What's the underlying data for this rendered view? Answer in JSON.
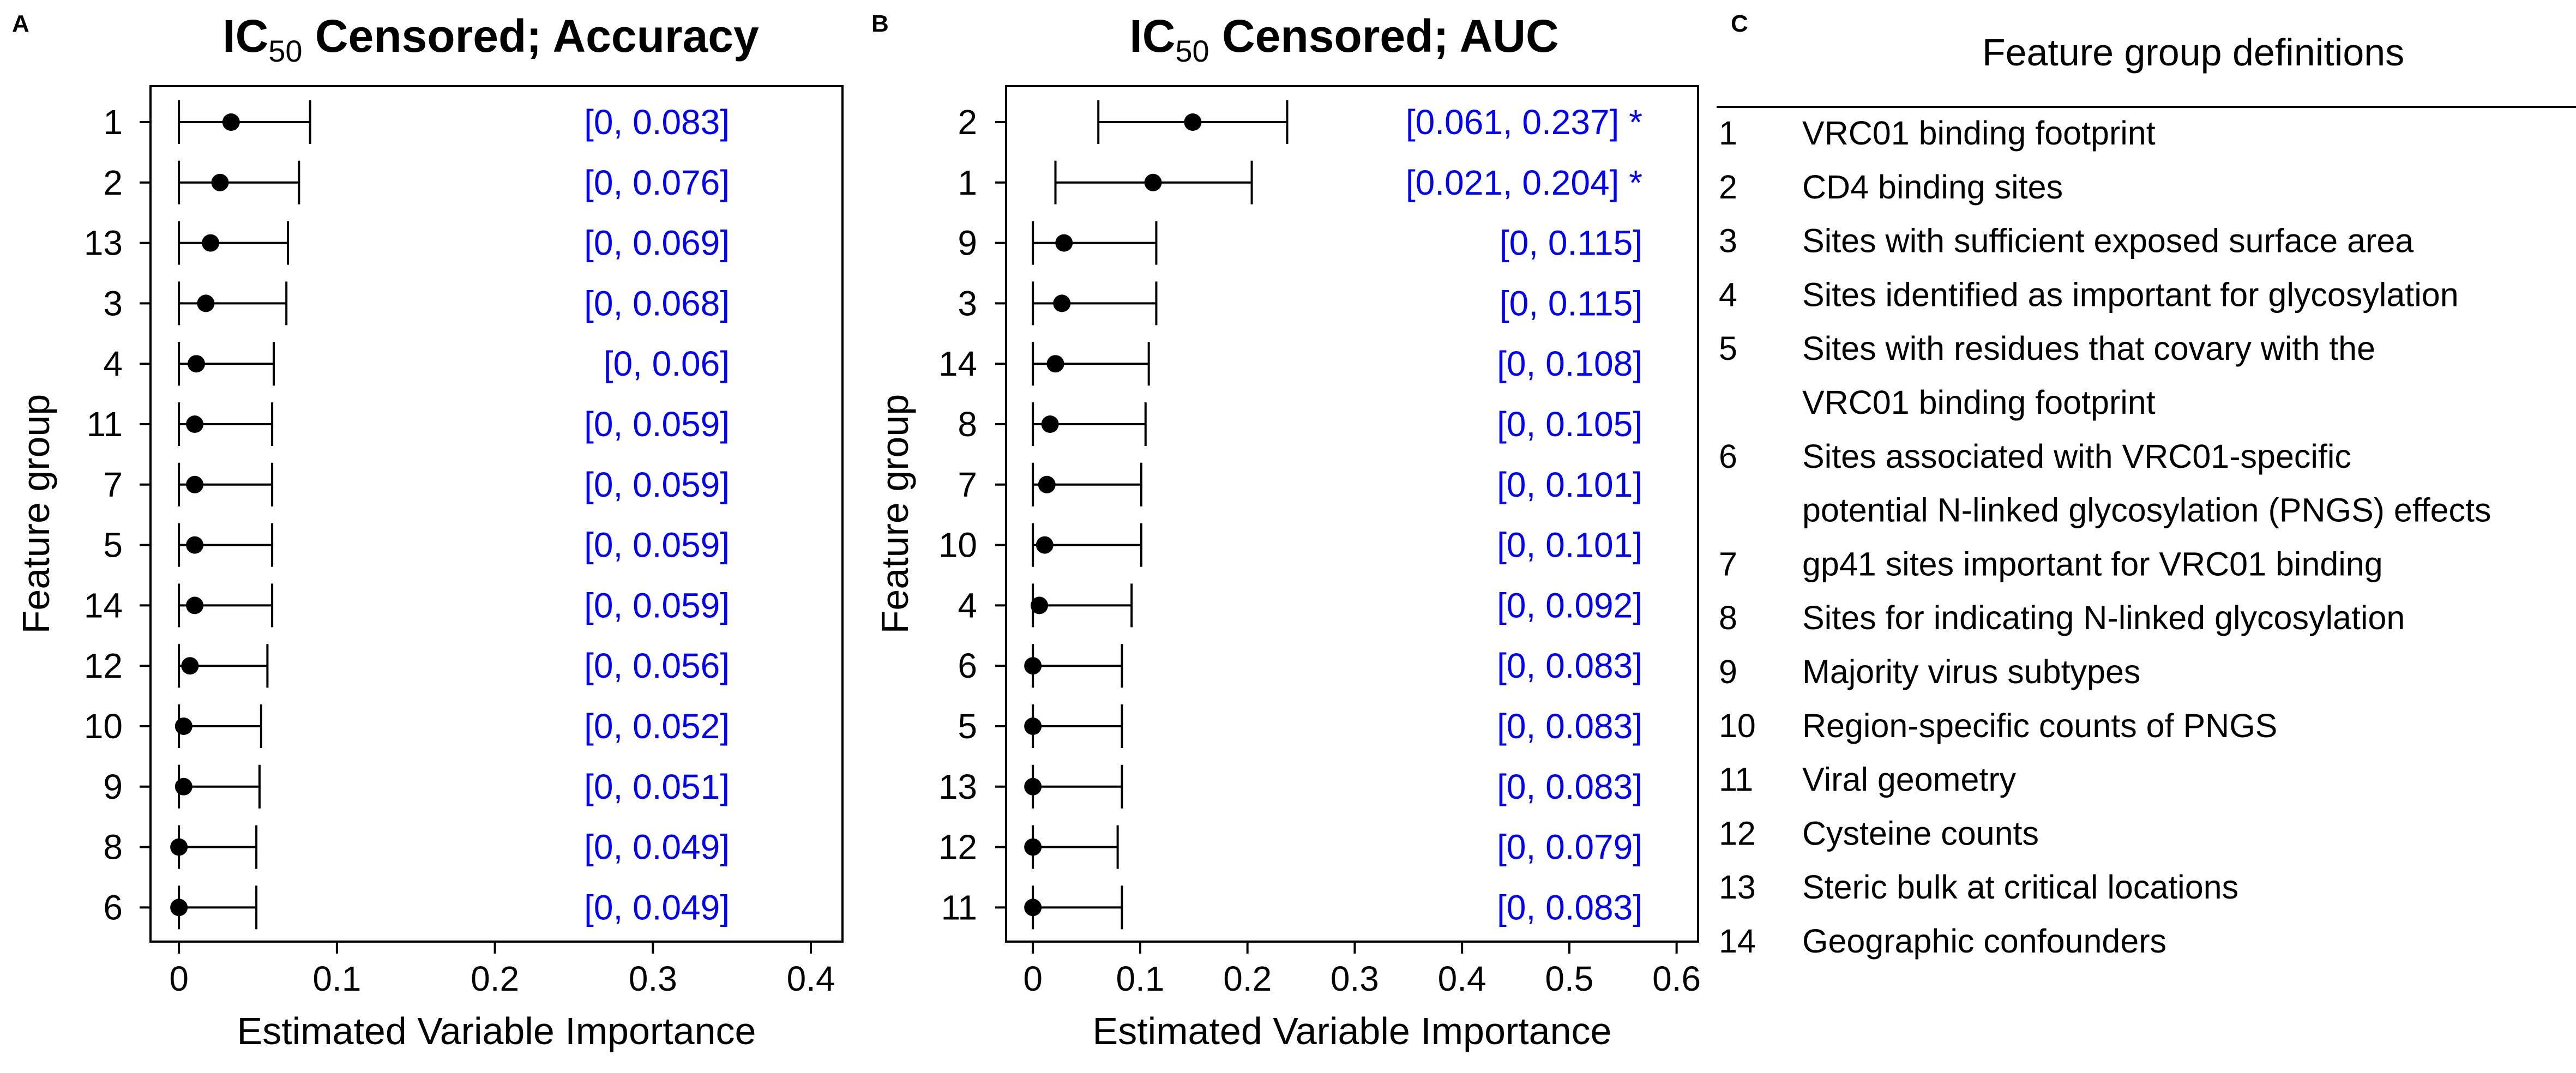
{
  "chart_data": [
    {
      "type": "forest",
      "panel_label": "A",
      "title": {
        "prefix": "IC",
        "subscript": "50",
        "suffix": " Censored;  Accuracy"
      },
      "xlabel": "Estimated Variable Importance",
      "ylabel": "Feature group",
      "xlim": [
        -0.018,
        0.42
      ],
      "xticks": [
        "0",
        "0.1",
        "0.2",
        "0.3",
        "0.4"
      ],
      "xtick_values": [
        0,
        0.1,
        0.2,
        0.3,
        0.4
      ],
      "rows": [
        {
          "group": "1",
          "estimate": 0.033,
          "lower": 0,
          "upper": 0.083,
          "ci_label": "[0, 0.083]"
        },
        {
          "group": "2",
          "estimate": 0.026,
          "lower": 0,
          "upper": 0.076,
          "ci_label": "[0, 0.076]"
        },
        {
          "group": "13",
          "estimate": 0.02,
          "lower": 0,
          "upper": 0.069,
          "ci_label": "[0, 0.069]"
        },
        {
          "group": "3",
          "estimate": 0.017,
          "lower": 0,
          "upper": 0.068,
          "ci_label": "[0, 0.068]"
        },
        {
          "group": "4",
          "estimate": 0.011,
          "lower": 0,
          "upper": 0.06,
          "ci_label": "[0, 0.06]"
        },
        {
          "group": "11",
          "estimate": 0.01,
          "lower": 0,
          "upper": 0.059,
          "ci_label": "[0, 0.059]"
        },
        {
          "group": "7",
          "estimate": 0.01,
          "lower": 0,
          "upper": 0.059,
          "ci_label": "[0, 0.059]"
        },
        {
          "group": "5",
          "estimate": 0.01,
          "lower": 0,
          "upper": 0.059,
          "ci_label": "[0, 0.059]"
        },
        {
          "group": "14",
          "estimate": 0.01,
          "lower": 0,
          "upper": 0.059,
          "ci_label": "[0, 0.059]"
        },
        {
          "group": "12",
          "estimate": 0.007,
          "lower": 0,
          "upper": 0.056,
          "ci_label": "[0, 0.056]"
        },
        {
          "group": "10",
          "estimate": 0.003,
          "lower": 0,
          "upper": 0.052,
          "ci_label": "[0, 0.052]"
        },
        {
          "group": "9",
          "estimate": 0.003,
          "lower": 0,
          "upper": 0.051,
          "ci_label": "[0, 0.051]"
        },
        {
          "group": "8",
          "estimate": 0.0,
          "lower": 0,
          "upper": 0.049,
          "ci_label": "[0, 0.049]"
        },
        {
          "group": "6",
          "estimate": 0.0,
          "lower": 0,
          "upper": 0.049,
          "ci_label": "[0, 0.049]"
        }
      ]
    },
    {
      "type": "forest",
      "panel_label": "B",
      "title": {
        "prefix": "IC",
        "subscript": "50",
        "suffix": " Censored;  AUC"
      },
      "xlabel": "Estimated Variable Importance",
      "ylabel": "Feature group",
      "xlim": [
        -0.025,
        0.62
      ],
      "xticks": [
        "0",
        "0.1",
        "0.2",
        "0.3",
        "0.4",
        "0.5",
        "0.6"
      ],
      "xtick_values": [
        0,
        0.1,
        0.2,
        0.3,
        0.4,
        0.5,
        0.6
      ],
      "rows": [
        {
          "group": "2",
          "estimate": 0.149,
          "lower": 0.061,
          "upper": 0.237,
          "ci_label": "[0.061, 0.237] *"
        },
        {
          "group": "1",
          "estimate": 0.112,
          "lower": 0.021,
          "upper": 0.204,
          "ci_label": "[0.021, 0.204] *"
        },
        {
          "group": "9",
          "estimate": 0.029,
          "lower": 0,
          "upper": 0.115,
          "ci_label": "[0, 0.115]"
        },
        {
          "group": "3",
          "estimate": 0.027,
          "lower": 0,
          "upper": 0.115,
          "ci_label": "[0, 0.115]"
        },
        {
          "group": "14",
          "estimate": 0.021,
          "lower": 0,
          "upper": 0.108,
          "ci_label": "[0, 0.108]"
        },
        {
          "group": "8",
          "estimate": 0.016,
          "lower": 0,
          "upper": 0.105,
          "ci_label": "[0, 0.105]"
        },
        {
          "group": "7",
          "estimate": 0.013,
          "lower": 0,
          "upper": 0.101,
          "ci_label": "[0, 0.101]"
        },
        {
          "group": "10",
          "estimate": 0.011,
          "lower": 0,
          "upper": 0.101,
          "ci_label": "[0, 0.101]"
        },
        {
          "group": "4",
          "estimate": 0.006,
          "lower": 0,
          "upper": 0.092,
          "ci_label": "[0, 0.092]"
        },
        {
          "group": "6",
          "estimate": 0.0,
          "lower": 0,
          "upper": 0.083,
          "ci_label": "[0, 0.083]"
        },
        {
          "group": "5",
          "estimate": 0.0,
          "lower": 0,
          "upper": 0.083,
          "ci_label": "[0, 0.083]"
        },
        {
          "group": "13",
          "estimate": 0.0,
          "lower": 0,
          "upper": 0.083,
          "ci_label": "[0, 0.083]"
        },
        {
          "group": "12",
          "estimate": 0.0,
          "lower": 0,
          "upper": 0.079,
          "ci_label": "[0, 0.079]"
        },
        {
          "group": "11",
          "estimate": 0.0,
          "lower": 0,
          "upper": 0.083,
          "ci_label": "[0, 0.083]"
        }
      ]
    }
  ],
  "legend_panel": {
    "panel_label": "C",
    "title": "Feature group definitions",
    "items": [
      {
        "num": "1",
        "lines": [
          "VRC01 binding footprint"
        ]
      },
      {
        "num": "2",
        "lines": [
          "CD4 binding sites"
        ]
      },
      {
        "num": "3",
        "lines": [
          "Sites with sufficient exposed surface area"
        ]
      },
      {
        "num": "4",
        "lines": [
          "Sites identified as important for glycosylation"
        ]
      },
      {
        "num": "5",
        "lines": [
          "Sites with residues that covary with the",
          "VRC01 binding footprint"
        ]
      },
      {
        "num": "6",
        "lines": [
          "Sites associated with VRC01-specific",
          "potential N-linked glycosylation (PNGS) effects"
        ]
      },
      {
        "num": "7",
        "lines": [
          "gp41 sites important for VRC01 binding"
        ]
      },
      {
        "num": "8",
        "lines": [
          "Sites for indicating N-linked glycosylation"
        ]
      },
      {
        "num": "9",
        "lines": [
          "Majority virus subtypes"
        ]
      },
      {
        "num": "10",
        "lines": [
          "Region-specific counts of PNGS"
        ]
      },
      {
        "num": "11",
        "lines": [
          "Viral geometry"
        ]
      },
      {
        "num": "12",
        "lines": [
          "Cysteine counts"
        ]
      },
      {
        "num": "13",
        "lines": [
          "Steric bulk at critical locations"
        ]
      },
      {
        "num": "14",
        "lines": [
          "Geographic confounders"
        ]
      }
    ]
  }
}
